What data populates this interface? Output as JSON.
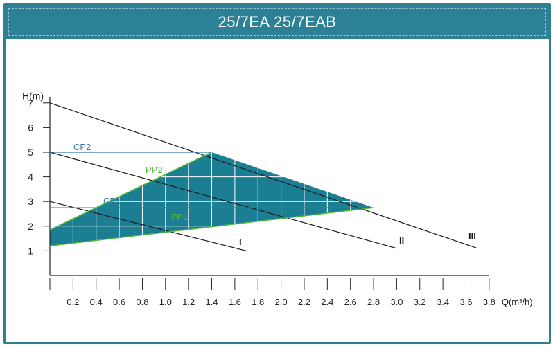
{
  "header": {
    "title": "25/7EA  25/7EAB"
  },
  "chart_data": {
    "type": "line",
    "title": "25/7EA  25/7EAB",
    "xlabel": "Q(m³/h)",
    "ylabel": "H(m)",
    "xlim": [
      0,
      3.8
    ],
    "ylim": [
      0,
      7
    ],
    "x_ticks": [
      "0.2",
      "0.4",
      "0.6",
      "0.8",
      "1.0",
      "1.2",
      "1.4",
      "1.6",
      "1.8",
      "2.0",
      "2.2",
      "2.4",
      "2.6",
      "2.8",
      "3.0",
      "3.2",
      "3.4",
      "3.6",
      "3.8"
    ],
    "y_ticks": [
      "1",
      "2",
      "3",
      "4",
      "5",
      "6",
      "7"
    ],
    "series": [
      {
        "name": "I",
        "points": [
          [
            0,
            3.0
          ],
          [
            1.7,
            1.0
          ]
        ]
      },
      {
        "name": "II",
        "points": [
          [
            0,
            5.0
          ],
          [
            3.0,
            1.1
          ]
        ]
      },
      {
        "name": "III",
        "points": [
          [
            0,
            7.0
          ],
          [
            3.7,
            1.1
          ]
        ]
      },
      {
        "name": "CP2",
        "points": [
          [
            0,
            5.0
          ],
          [
            1.4,
            5.0
          ]
        ]
      },
      {
        "name": "CP1",
        "points": [
          [
            0,
            2.75
          ],
          [
            2.8,
            2.75
          ]
        ]
      },
      {
        "name": "PP2",
        "points": [
          [
            0,
            1.85
          ],
          [
            1.4,
            5.0
          ]
        ]
      },
      {
        "name": "PP1",
        "points": [
          [
            0,
            1.2
          ],
          [
            2.8,
            2.75
          ]
        ]
      }
    ],
    "shaded_region": [
      [
        0,
        1.85
      ],
      [
        1.4,
        5.0
      ],
      [
        2.8,
        2.75
      ],
      [
        0,
        1.2
      ]
    ],
    "grid": "inside shaded region",
    "colors": {
      "fill": "#1b7e93",
      "curves": "#1a1a1a",
      "cp": "#3a78a8",
      "pp": "#4fb83a",
      "header": "#2d8196"
    }
  }
}
